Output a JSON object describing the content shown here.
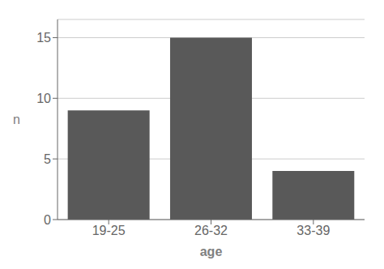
{
  "chart_data": {
    "type": "bar",
    "categories": [
      "19-25",
      "26-32",
      "33-39"
    ],
    "values": [
      9,
      15,
      4
    ],
    "color": "#595959",
    "xlabel": "age",
    "ylabel": "n",
    "ylim": [
      0,
      16.5
    ],
    "yticks": [
      0,
      5,
      10,
      15
    ],
    "grid": true
  }
}
